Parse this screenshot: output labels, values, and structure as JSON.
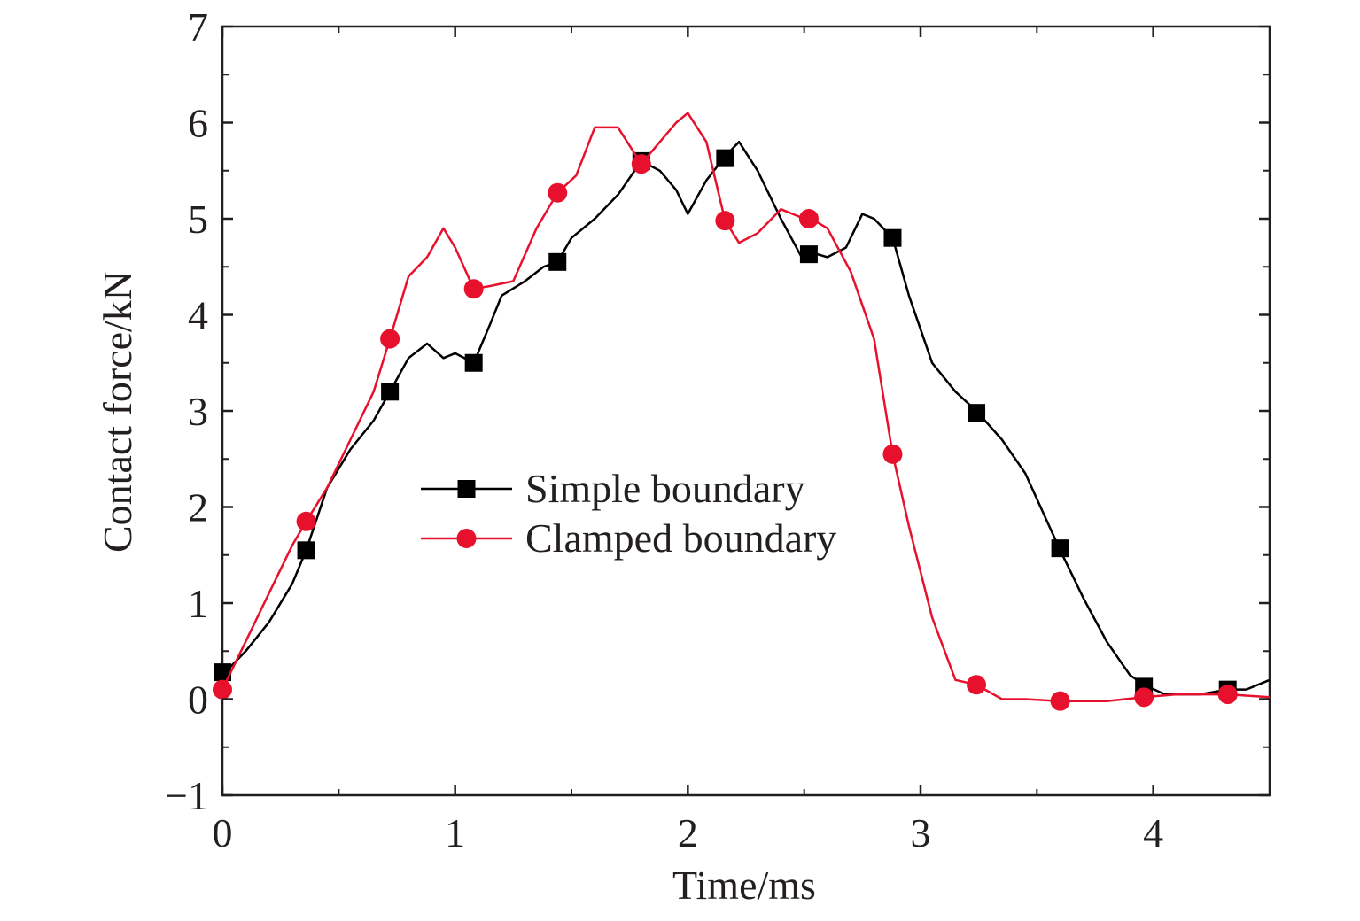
{
  "chart_data": {
    "type": "line",
    "title": "",
    "xlabel": "Time/ms",
    "ylabel": "Contact force/kN",
    "xlim": [
      0,
      4.5
    ],
    "ylim": [
      -1,
      7
    ],
    "x_ticks": [
      0,
      1,
      2,
      3,
      4
    ],
    "y_ticks": [
      -1,
      0,
      1,
      2,
      3,
      4,
      5,
      6,
      7
    ],
    "x_tick_labels": [
      "0",
      "1",
      "2",
      "3",
      "4"
    ],
    "y_tick_labels": [
      "−1",
      "0",
      "1",
      "2",
      "3",
      "4",
      "5",
      "6",
      "7"
    ],
    "grid": false,
    "legend_position": "center-left",
    "series": [
      {
        "name": "Simple boundary",
        "color": "#000000",
        "marker": "square",
        "x": [
          0,
          0.1,
          0.2,
          0.3,
          0.36,
          0.45,
          0.55,
          0.65,
          0.72,
          0.8,
          0.88,
          0.95,
          1.0,
          1.08,
          1.15,
          1.2,
          1.3,
          1.38,
          1.44,
          1.5,
          1.6,
          1.7,
          1.8,
          1.88,
          1.95,
          2.0,
          2.08,
          2.16,
          2.22,
          2.3,
          2.4,
          2.5,
          2.53,
          2.6,
          2.68,
          2.75,
          2.8,
          2.88,
          2.95,
          3.05,
          3.15,
          3.24,
          3.35,
          3.45,
          3.6,
          3.7,
          3.8,
          3.9,
          3.96,
          4.05,
          4.2,
          4.32,
          4.4,
          4.5
        ],
        "y": [
          0.25,
          0.5,
          0.8,
          1.2,
          1.55,
          2.2,
          2.6,
          2.9,
          3.2,
          3.55,
          3.7,
          3.55,
          3.6,
          3.5,
          3.9,
          4.2,
          4.35,
          4.5,
          4.55,
          4.8,
          5.0,
          5.25,
          5.6,
          5.5,
          5.3,
          5.05,
          5.4,
          5.65,
          5.8,
          5.5,
          5.0,
          4.55,
          4.65,
          4.6,
          4.7,
          5.05,
          5.0,
          4.8,
          4.2,
          3.5,
          3.2,
          3.0,
          2.7,
          2.35,
          1.55,
          1.05,
          0.6,
          0.25,
          0.15,
          0.05,
          0.05,
          0.1,
          0.1,
          0.2
        ],
        "marker_x": [
          0,
          0.36,
          0.72,
          1.08,
          1.44,
          1.8,
          2.16,
          2.52,
          2.88,
          3.24,
          3.6,
          3.96,
          4.32
        ],
        "marker_y": [
          0.28,
          1.55,
          3.2,
          3.5,
          4.55,
          5.6,
          5.63,
          4.63,
          4.8,
          2.98,
          1.57,
          0.13,
          0.1
        ]
      },
      {
        "name": "Clamped boundary",
        "color": "#e8112d",
        "marker": "circle",
        "x": [
          0,
          0.1,
          0.2,
          0.3,
          0.36,
          0.45,
          0.55,
          0.65,
          0.72,
          0.8,
          0.88,
          0.95,
          1.0,
          1.08,
          1.15,
          1.25,
          1.35,
          1.44,
          1.52,
          1.6,
          1.7,
          1.8,
          1.88,
          1.95,
          2.0,
          2.08,
          2.16,
          2.22,
          2.3,
          2.4,
          2.5,
          2.53,
          2.6,
          2.7,
          2.8,
          2.88,
          2.95,
          3.05,
          3.15,
          3.24,
          3.35,
          3.45,
          3.6,
          3.8,
          3.96,
          4.1,
          4.32,
          4.5
        ],
        "y": [
          0.1,
          0.6,
          1.1,
          1.6,
          1.85,
          2.2,
          2.7,
          3.2,
          3.75,
          4.4,
          4.6,
          4.9,
          4.7,
          4.27,
          4.3,
          4.35,
          4.9,
          5.27,
          5.45,
          5.95,
          5.95,
          5.57,
          5.8,
          6.0,
          6.1,
          5.8,
          4.98,
          4.75,
          4.85,
          5.1,
          5.0,
          5.0,
          4.9,
          4.45,
          3.75,
          2.55,
          1.8,
          0.85,
          0.2,
          0.15,
          0.0,
          0.0,
          -0.02,
          -0.02,
          0.02,
          0.05,
          0.05,
          0.02
        ],
        "marker_x": [
          0,
          0.36,
          0.72,
          1.08,
          1.44,
          1.8,
          2.16,
          2.52,
          2.88,
          3.24,
          3.6,
          3.96,
          4.32
        ],
        "marker_y": [
          0.1,
          1.85,
          3.75,
          4.27,
          5.27,
          5.57,
          4.98,
          5.0,
          2.55,
          0.15,
          -0.02,
          0.02,
          0.05
        ]
      }
    ]
  }
}
